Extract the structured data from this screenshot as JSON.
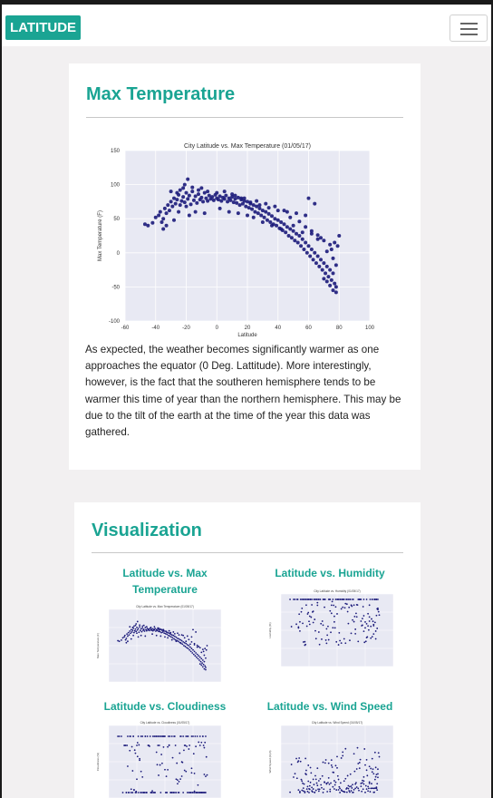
{
  "navbar": {
    "brand": "LATITUDE"
  },
  "main_card": {
    "heading": "Max Temperature",
    "description": "As expected, the weather becomes significantly warmer as one approaches the equator (0 Deg. Lattitude). More interestingly, however, is the fact that the southeren hemisphere tends to be warmer this time of year than the northern hemisphere. This may be due to the tilt of the earth at the time of the year this data was gathered."
  },
  "viz_card": {
    "heading": "Visualization",
    "thumbnails": [
      {
        "title": "Latitude vs. Max Temperature",
        "chart_title": "City Latitude vs. Max Temperature (01/05/17)",
        "ylabel": "Max Temperature (F)"
      },
      {
        "title": "Latitude vs. Humidity",
        "chart_title": "City Latitude vs. Humidity (01/05/17)",
        "ylabel": "Humidity (%)"
      },
      {
        "title": "Latitude vs. Cloudiness",
        "chart_title": "City Latitude vs. Cloudiness (01/05/17)",
        "ylabel": "Cloudiness (%)"
      },
      {
        "title": "Latitude vs. Wind Speed",
        "chart_title": "City Latitude vs. Wind Speed (01/05/17)",
        "ylabel": "Wind Speed (mph)"
      }
    ]
  },
  "chart_data": {
    "type": "scatter",
    "title": "City Latitude vs. Max Temperature (01/05/17)",
    "xlabel": "Latitude",
    "ylabel": "Max Temperature (F)",
    "xlim": [
      -60,
      100
    ],
    "ylim": [
      -100,
      150
    ],
    "xticks": [
      -60,
      -40,
      -20,
      0,
      20,
      40,
      60,
      80,
      100
    ],
    "yticks": [
      -100,
      -50,
      0,
      50,
      100,
      150
    ],
    "grid": true,
    "marker_color": "#1b1a7a",
    "background_color": "#e8e9f3",
    "points": [
      [
        -45,
        40
      ],
      [
        -42,
        44
      ],
      [
        -40,
        52
      ],
      [
        -38,
        55
      ],
      [
        -37,
        60
      ],
      [
        -35,
        50
      ],
      [
        -34,
        65
      ],
      [
        -33,
        58
      ],
      [
        -32,
        70
      ],
      [
        -31,
        62
      ],
      [
        -30,
        75
      ],
      [
        -29,
        68
      ],
      [
        -28,
        80
      ],
      [
        -27,
        72
      ],
      [
        -26,
        78
      ],
      [
        -25,
        60
      ],
      [
        -25,
        85
      ],
      [
        -24,
        70
      ],
      [
        -23,
        76
      ],
      [
        -22,
        82
      ],
      [
        -21,
        74
      ],
      [
        -20,
        88
      ],
      [
        -20,
        68
      ],
      [
        -19,
        79
      ],
      [
        -18,
        84
      ],
      [
        -17,
        71
      ],
      [
        -16,
        90
      ],
      [
        -15,
        77
      ],
      [
        -14,
        83
      ],
      [
        -13,
        73
      ],
      [
        -12,
        86
      ],
      [
        -11,
        78
      ],
      [
        -10,
        81
      ],
      [
        -9,
        75
      ],
      [
        -8,
        88
      ],
      [
        -7,
        80
      ],
      [
        -6,
        76
      ],
      [
        -5,
        84
      ],
      [
        -4,
        79
      ],
      [
        -3,
        82
      ],
      [
        -2,
        77
      ],
      [
        -1,
        85
      ],
      [
        0,
        80
      ],
      [
        1,
        78
      ],
      [
        2,
        83
      ],
      [
        3,
        76
      ],
      [
        4,
        81
      ],
      [
        5,
        79
      ],
      [
        6,
        84
      ],
      [
        7,
        75
      ],
      [
        8,
        80
      ],
      [
        9,
        77
      ],
      [
        10,
        82
      ],
      [
        11,
        74
      ],
      [
        12,
        79
      ],
      [
        13,
        73
      ],
      [
        14,
        81
      ],
      [
        15,
        70
      ],
      [
        16,
        78
      ],
      [
        17,
        72
      ],
      [
        18,
        76
      ],
      [
        19,
        68
      ],
      [
        20,
        75
      ],
      [
        21,
        66
      ],
      [
        22,
        72
      ],
      [
        23,
        64
      ],
      [
        24,
        70
      ],
      [
        25,
        60
      ],
      [
        26,
        68
      ],
      [
        27,
        58
      ],
      [
        28,
        65
      ],
      [
        29,
        55
      ],
      [
        30,
        62
      ],
      [
        31,
        52
      ],
      [
        32,
        60
      ],
      [
        33,
        48
      ],
      [
        34,
        57
      ],
      [
        35,
        45
      ],
      [
        36,
        54
      ],
      [
        37,
        42
      ],
      [
        38,
        50
      ],
      [
        39,
        40
      ],
      [
        40,
        48
      ],
      [
        41,
        36
      ],
      [
        42,
        45
      ],
      [
        43,
        33
      ],
      [
        44,
        42
      ],
      [
        45,
        30
      ],
      [
        46,
        38
      ],
      [
        47,
        25
      ],
      [
        48,
        35
      ],
      [
        49,
        22
      ],
      [
        50,
        32
      ],
      [
        51,
        18
      ],
      [
        52,
        28
      ],
      [
        53,
        15
      ],
      [
        54,
        25
      ],
      [
        55,
        10
      ],
      [
        56,
        20
      ],
      [
        57,
        5
      ],
      [
        58,
        15
      ],
      [
        59,
        0
      ],
      [
        60,
        10
      ],
      [
        61,
        -5
      ],
      [
        62,
        5
      ],
      [
        63,
        -10
      ],
      [
        64,
        0
      ],
      [
        65,
        -15
      ],
      [
        66,
        -5
      ],
      [
        67,
        -20
      ],
      [
        68,
        -10
      ],
      [
        69,
        -25
      ],
      [
        70,
        -15
      ],
      [
        71,
        -30
      ],
      [
        72,
        -20
      ],
      [
        73,
        -35
      ],
      [
        74,
        -25
      ],
      [
        75,
        -40
      ],
      [
        76,
        -30
      ],
      [
        77,
        -45
      ],
      [
        78,
        -50
      ],
      [
        76,
        -55
      ],
      [
        74,
        -48
      ],
      [
        72,
        -42
      ],
      [
        70,
        -38
      ],
      [
        78,
        -58
      ],
      [
        79,
        10
      ],
      [
        80,
        25
      ],
      [
        77,
        15
      ],
      [
        75,
        5
      ],
      [
        -47,
        42
      ],
      [
        -36,
        45
      ],
      [
        -26,
        88
      ],
      [
        -24,
        92
      ],
      [
        -22,
        95
      ],
      [
        -21,
        100
      ],
      [
        -19,
        108
      ],
      [
        -16,
        96
      ],
      [
        -12,
        92
      ],
      [
        -6,
        90
      ],
      [
        -33,
        40
      ],
      [
        -28,
        48
      ],
      [
        -18,
        55
      ],
      [
        -14,
        60
      ],
      [
        -8,
        58
      ],
      [
        2,
        65
      ],
      [
        8,
        60
      ],
      [
        14,
        58
      ],
      [
        20,
        55
      ],
      [
        24,
        52
      ],
      [
        30,
        45
      ],
      [
        36,
        40
      ],
      [
        42,
        35
      ],
      [
        50,
        40
      ],
      [
        56,
        30
      ],
      [
        62,
        28
      ],
      [
        66,
        20
      ],
      [
        70,
        18
      ],
      [
        74,
        12
      ],
      [
        60,
        80
      ],
      [
        64,
        72
      ],
      [
        58,
        55
      ],
      [
        52,
        58
      ],
      [
        46,
        60
      ],
      [
        40,
        62
      ],
      [
        34,
        66
      ],
      [
        28,
        70
      ],
      [
        22,
        74
      ],
      [
        16,
        80
      ],
      [
        10,
        86
      ],
      [
        -35,
        35
      ],
      [
        -30,
        90
      ],
      [
        -10,
        95
      ],
      [
        0,
        88
      ],
      [
        5,
        90
      ],
      [
        12,
        84
      ],
      [
        18,
        80
      ],
      [
        26,
        76
      ],
      [
        32,
        72
      ],
      [
        38,
        68
      ],
      [
        44,
        62
      ],
      [
        48,
        52
      ],
      [
        54,
        46
      ],
      [
        58,
        38
      ],
      [
        62,
        32
      ],
      [
        66,
        26
      ],
      [
        68,
        22
      ],
      [
        72,
        2
      ],
      [
        76,
        -8
      ],
      [
        78,
        -18
      ]
    ]
  }
}
